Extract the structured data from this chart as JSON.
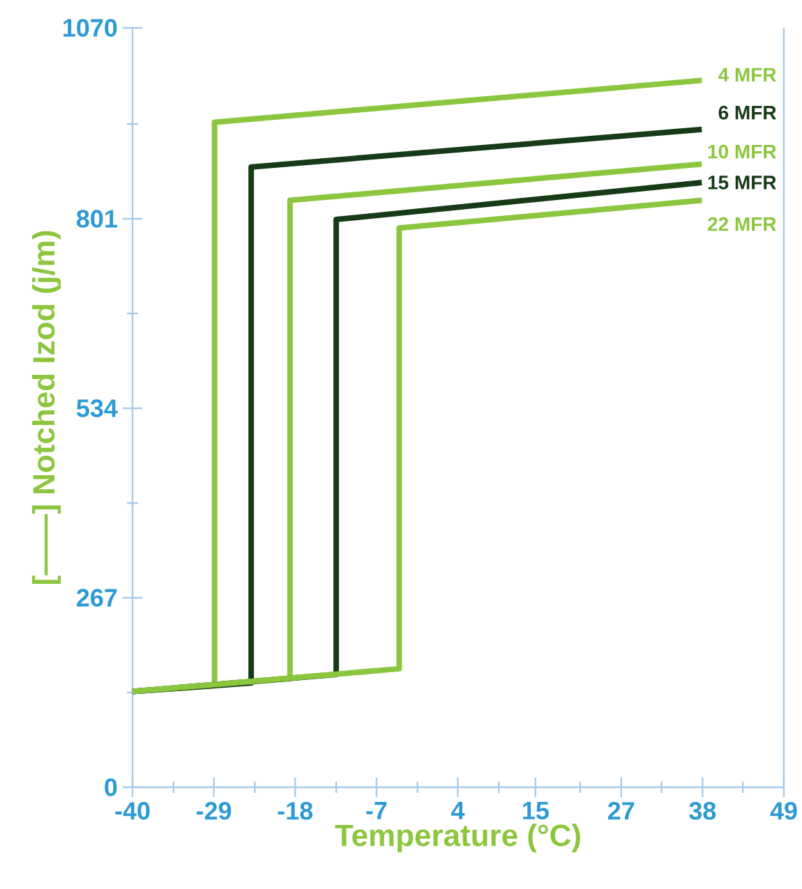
{
  "chart_data": {
    "type": "line",
    "xlabel": "Temperature (°C)",
    "ylabel": "[——] Notched Izod (j/m)",
    "xlim": [
      -40,
      48.9
    ],
    "ylim": [
      0,
      1070
    ],
    "xticks": [
      {
        "value": -40,
        "label": "-40"
      },
      {
        "value": -28.9,
        "label": "-29"
      },
      {
        "value": -17.8,
        "label": "-18"
      },
      {
        "value": -6.7,
        "label": "-7"
      },
      {
        "value": 4.4,
        "label": "4"
      },
      15,
      {
        "value": 26.7,
        "label": "27"
      },
      {
        "value": 37.8,
        "label": "38"
      },
      {
        "value": 48.9,
        "label": "49"
      },
      {
        "value": -34.4,
        "label": null
      },
      {
        "value": -23.3,
        "label": null
      },
      {
        "value": -12.2,
        "label": null
      },
      {
        "value": -1.1,
        "label": null
      },
      {
        "value": 10,
        "label": null
      },
      {
        "value": 21.1,
        "label": null
      },
      {
        "value": 32.2,
        "label": null
      },
      {
        "value": 43.3,
        "label": null
      }
    ],
    "yticks": [
      0,
      267,
      534,
      801,
      1070,
      {
        "value": 133.5,
        "label": null
      },
      {
        "value": 400.5,
        "label": null
      },
      {
        "value": 667.5,
        "label": null
      },
      {
        "value": 934.5,
        "label": null
      }
    ],
    "grid": false,
    "legend": false,
    "marker": "none",
    "line_style": "solid",
    "series": [
      {
        "name": "4 MFR",
        "color": "#8cc63f",
        "x": [
          -40,
          -28.8,
          -28.8,
          37.7
        ],
        "values": [
          135,
          143,
          937,
          996
        ]
      },
      {
        "name": "6 MFR",
        "color": "#173a17",
        "x": [
          -40,
          -23.8,
          -23.8,
          37.7
        ],
        "values": [
          135,
          147,
          874,
          927
        ]
      },
      {
        "name": "10 MFR",
        "color": "#8cc63f",
        "x": [
          -40,
          -18.5,
          -18.5,
          37.7
        ],
        "values": [
          135,
          153,
          827,
          878
        ]
      },
      {
        "name": "15 MFR",
        "color": "#173a17",
        "x": [
          -40,
          -12.2,
          -12.2,
          37.7
        ],
        "values": [
          135,
          159,
          800,
          852
        ]
      },
      {
        "name": "22 MFR",
        "color": "#8cc63f",
        "x": [
          -40,
          -3.6,
          -3.6,
          37.7
        ],
        "values": [
          135,
          167,
          788,
          827
        ]
      }
    ]
  }
}
